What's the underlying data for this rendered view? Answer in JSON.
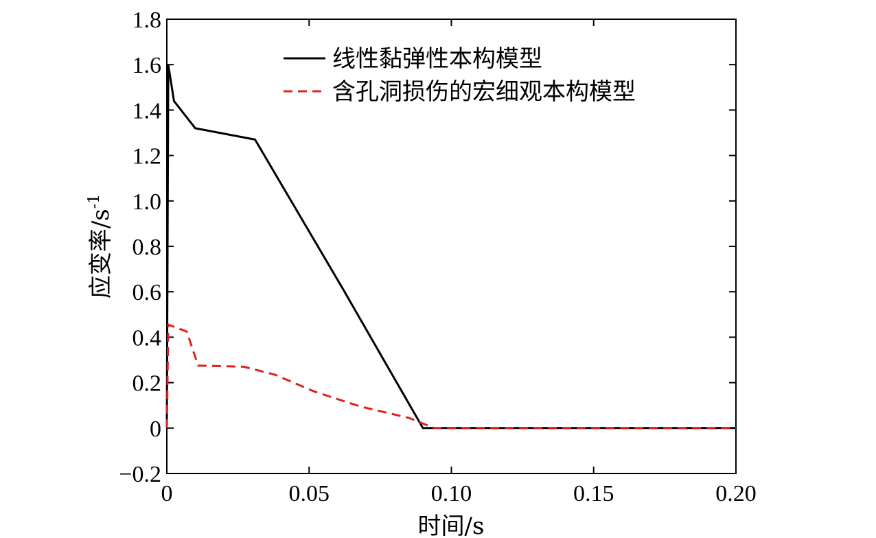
{
  "chart_data": {
    "type": "line",
    "title": "",
    "xlabel": "时间/s",
    "ylabel": "应变率/s",
    "ylabel_sup": "-1",
    "xlim": [
      0,
      0.2
    ],
    "ylim": [
      -0.2,
      1.8
    ],
    "xticks": [
      0,
      0.05,
      0.1,
      0.15,
      0.2
    ],
    "xtick_labels": [
      "0",
      "0.05",
      "0.10",
      "0.15",
      "0.20"
    ],
    "yticks": [
      -0.2,
      0,
      0.2,
      0.4,
      0.6,
      0.8,
      1.0,
      1.2,
      1.4,
      1.6,
      1.8
    ],
    "ytick_labels": [
      "−0.2",
      "0",
      "0.2",
      "0.4",
      "0.6",
      "0.8",
      "1.0",
      "1.2",
      "1.4",
      "1.6",
      "1.8"
    ],
    "grid": false,
    "legend_position": "top-right",
    "series": [
      {
        "name": "线性黏弹性本构模型",
        "color": "#000000",
        "dash": "solid",
        "x": [
          0,
          0.0005,
          0.0025,
          0.01,
          0.031,
          0.062,
          0.09,
          0.2
        ],
        "y": [
          0,
          1.6,
          1.44,
          1.32,
          1.27,
          0.61,
          0.0,
          0.0
        ]
      },
      {
        "name": "含孔洞损伤的宏细观本构模型",
        "color": "#e02020",
        "dash": "dashed",
        "x": [
          0,
          0.0005,
          0.007,
          0.011,
          0.027,
          0.038,
          0.052,
          0.068,
          0.085,
          0.094,
          0.2
        ],
        "y": [
          0,
          0.455,
          0.425,
          0.275,
          0.27,
          0.235,
          0.16,
          0.095,
          0.045,
          0.0,
          0.0
        ]
      }
    ]
  }
}
